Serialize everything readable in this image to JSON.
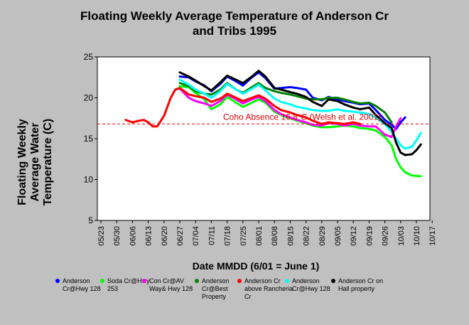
{
  "chart_data": {
    "type": "line",
    "title_lines": [
      "Floating Weekly Average Temperature of Anderson Cr",
      "and Tribs 1995"
    ],
    "ylabel_lines": [
      "Floating Weekly",
      "Average Water",
      "Temperature (C)"
    ],
    "xlabel": "Date MMDD (6/01 = June 1)",
    "x_ticks": [
      "05/23",
      "05/30",
      "06/06",
      "06/13",
      "06/20",
      "06/27",
      "07/04",
      "07/11",
      "07/18",
      "07/25",
      "08/01",
      "08/08",
      "08/15",
      "08/22",
      "08/29",
      "09/05",
      "09/12",
      "09/19",
      "09/26",
      "10/03",
      "10/10",
      "10/17"
    ],
    "y_ticks": [
      5,
      10,
      15,
      20,
      25
    ],
    "ylim": [
      5,
      25
    ],
    "reference_line": {
      "value": 16.8,
      "label": "Coho Absence 16.8°C (Welsh et al. 2001)",
      "color": "#dd0000"
    },
    "series": [
      {
        "name": "Anderson Cr@Hwy 128",
        "color": "#0000ff",
        "points": [
          [
            "06/27",
            22.6
          ],
          [
            "07/01",
            22.5
          ],
          [
            "07/04",
            22.0
          ],
          [
            "07/08",
            21.5
          ],
          [
            "07/11",
            20.8
          ],
          [
            "07/15",
            21.7
          ],
          [
            "07/18",
            22.6
          ],
          [
            "07/22",
            22.0
          ],
          [
            "07/25",
            21.5
          ],
          [
            "07/29",
            22.5
          ],
          [
            "08/01",
            23.1
          ],
          [
            "08/04",
            22.4
          ],
          [
            "08/08",
            21.1
          ],
          [
            "08/11",
            21.2
          ],
          [
            "08/15",
            21.3
          ],
          [
            "08/18",
            21.2
          ],
          [
            "08/22",
            21.0
          ],
          [
            "08/25",
            20.0
          ],
          [
            "08/29",
            19.7
          ],
          [
            "09/01",
            20.1
          ],
          [
            "09/05",
            19.8
          ],
          [
            "09/08",
            19.6
          ],
          [
            "09/12",
            19.4
          ],
          [
            "09/15",
            19.2
          ],
          [
            "09/19",
            19.3
          ],
          [
            "09/22",
            18.5
          ],
          [
            "09/26",
            17.3
          ],
          [
            "09/29",
            16.7
          ],
          [
            "10/01",
            16.2
          ],
          [
            "10/03",
            17.0
          ],
          [
            "10/05",
            17.6
          ]
        ]
      },
      {
        "name": "Soda Cr@Hwy 253",
        "color": "#00ff00",
        "points": [
          [
            "06/27",
            21.4
          ],
          [
            "07/01",
            21.3
          ],
          [
            "07/04",
            20.6
          ],
          [
            "07/08",
            19.8
          ],
          [
            "07/11",
            18.6
          ],
          [
            "07/15",
            19.2
          ],
          [
            "07/18",
            20.1
          ],
          [
            "07/22",
            19.4
          ],
          [
            "07/25",
            18.9
          ],
          [
            "07/29",
            19.4
          ],
          [
            "08/01",
            19.8
          ],
          [
            "08/04",
            19.4
          ],
          [
            "08/08",
            18.3
          ],
          [
            "08/11",
            17.9
          ],
          [
            "08/15",
            17.5
          ],
          [
            "08/18",
            17.2
          ],
          [
            "08/22",
            16.9
          ],
          [
            "08/25",
            16.6
          ],
          [
            "08/29",
            16.4
          ],
          [
            "09/01",
            16.4
          ],
          [
            "09/05",
            16.5
          ],
          [
            "09/08",
            16.6
          ],
          [
            "09/12",
            16.5
          ],
          [
            "09/15",
            16.3
          ],
          [
            "09/19",
            16.2
          ],
          [
            "09/22",
            16.0
          ],
          [
            "09/26",
            15.2
          ],
          [
            "09/29",
            14.2
          ],
          [
            "10/01",
            12.5
          ],
          [
            "10/03",
            11.5
          ],
          [
            "10/05",
            10.9
          ],
          [
            "10/08",
            10.5
          ],
          [
            "10/12",
            10.4
          ]
        ]
      },
      {
        "name": "Con Cr@AV Way& Hwy 128",
        "color": "#ff00ff",
        "points": [
          [
            "06/27",
            21.1
          ],
          [
            "07/01",
            20.0
          ],
          [
            "07/04",
            19.6
          ],
          [
            "07/08",
            19.3
          ],
          [
            "07/11",
            19.0
          ],
          [
            "07/15",
            19.6
          ],
          [
            "07/18",
            20.4
          ],
          [
            "07/22",
            19.8
          ],
          [
            "07/25",
            19.3
          ],
          [
            "07/29",
            19.8
          ],
          [
            "08/01",
            20.1
          ],
          [
            "08/04",
            19.6
          ],
          [
            "08/08",
            18.5
          ],
          [
            "08/11",
            18.0
          ],
          [
            "08/15",
            17.6
          ],
          [
            "08/18",
            17.3
          ],
          [
            "08/22",
            17.0
          ],
          [
            "08/25",
            16.7
          ],
          [
            "08/29",
            16.6
          ],
          [
            "09/01",
            16.9
          ],
          [
            "09/05",
            16.8
          ],
          [
            "09/08",
            16.6
          ],
          [
            "09/12",
            16.8
          ],
          [
            "09/15",
            16.6
          ],
          [
            "09/19",
            16.5
          ],
          [
            "09/22",
            16.5
          ],
          [
            "09/26",
            15.5
          ],
          [
            "09/29",
            15.2
          ],
          [
            "10/01",
            16.5
          ],
          [
            "10/03",
            17.5
          ]
        ]
      },
      {
        "name": "Anderson Cr@Best Property",
        "color": "#008000",
        "points": [
          [
            "06/27",
            21.8
          ],
          [
            "07/01",
            21.4
          ],
          [
            "07/04",
            20.8
          ],
          [
            "07/08",
            20.5
          ],
          [
            "07/11",
            20.4
          ],
          [
            "07/15",
            21.0
          ],
          [
            "07/18",
            21.8
          ],
          [
            "07/22",
            21.0
          ],
          [
            "07/25",
            20.6
          ],
          [
            "07/29",
            21.3
          ],
          [
            "08/01",
            21.8
          ],
          [
            "08/04",
            21.2
          ],
          [
            "08/08",
            20.8
          ],
          [
            "08/11",
            20.6
          ],
          [
            "08/15",
            20.4
          ],
          [
            "08/18",
            20.2
          ],
          [
            "08/22",
            19.9
          ],
          [
            "08/25",
            19.8
          ],
          [
            "08/29",
            19.8
          ],
          [
            "09/01",
            20.0
          ],
          [
            "09/05",
            20.0
          ],
          [
            "09/08",
            19.8
          ],
          [
            "09/12",
            19.5
          ],
          [
            "09/15",
            19.3
          ],
          [
            "09/19",
            19.4
          ],
          [
            "09/22",
            19.0
          ],
          [
            "09/26",
            18.2
          ],
          [
            "09/29",
            17.0
          ]
        ]
      },
      {
        "name": "Anderson Cr above Rancheria Cr",
        "color": "#ff0000",
        "points": [
          [
            "06/03",
            17.3
          ],
          [
            "06/06",
            17.0
          ],
          [
            "06/09",
            17.2
          ],
          [
            "06/11",
            17.3
          ],
          [
            "06/13",
            17.0
          ],
          [
            "06/15",
            16.5
          ],
          [
            "06/17",
            16.5
          ],
          [
            "06/20",
            17.8
          ],
          [
            "06/23",
            20.0
          ],
          [
            "06/25",
            21.0
          ],
          [
            "06/27",
            21.2
          ],
          [
            "07/01",
            20.4
          ],
          [
            "07/04",
            20.2
          ],
          [
            "07/08",
            20.0
          ],
          [
            "07/11",
            19.5
          ],
          [
            "07/15",
            19.9
          ],
          [
            "07/18",
            20.5
          ],
          [
            "07/22",
            20.0
          ],
          [
            "07/25",
            19.6
          ],
          [
            "07/29",
            20.0
          ],
          [
            "08/01",
            20.3
          ],
          [
            "08/04",
            19.9
          ],
          [
            "08/08",
            19.0
          ],
          [
            "08/11",
            18.5
          ],
          [
            "08/15",
            18.2
          ],
          [
            "08/18",
            17.9
          ],
          [
            "08/22",
            17.6
          ],
          [
            "08/25",
            17.2
          ],
          [
            "08/29",
            16.8
          ],
          [
            "09/01",
            17.0
          ],
          [
            "09/05",
            16.9
          ],
          [
            "09/08",
            16.8
          ],
          [
            "09/12",
            17.0
          ],
          [
            "09/15",
            16.8
          ]
        ]
      },
      {
        "name": "Anderson Cr@Hwy 128",
        "color": "#00ffff",
        "points": [
          [
            "06/27",
            22.2
          ],
          [
            "07/01",
            21.6
          ],
          [
            "07/04",
            21.0
          ],
          [
            "07/08",
            20.5
          ],
          [
            "07/11",
            20.0
          ],
          [
            "07/15",
            20.8
          ],
          [
            "07/18",
            21.7
          ],
          [
            "07/22",
            21.0
          ],
          [
            "07/25",
            20.5
          ],
          [
            "07/29",
            21.1
          ],
          [
            "08/01",
            21.6
          ],
          [
            "08/04",
            20.9
          ],
          [
            "08/08",
            19.9
          ],
          [
            "08/11",
            19.5
          ],
          [
            "08/15",
            19.2
          ],
          [
            "08/18",
            18.9
          ],
          [
            "08/22",
            18.7
          ],
          [
            "08/25",
            18.5
          ],
          [
            "08/29",
            18.4
          ],
          [
            "09/01",
            18.4
          ],
          [
            "09/05",
            18.6
          ],
          [
            "09/08",
            18.4
          ],
          [
            "09/12",
            18.3
          ],
          [
            "09/15",
            18.2
          ],
          [
            "09/19",
            18.0
          ],
          [
            "09/22",
            17.6
          ],
          [
            "09/26",
            16.8
          ],
          [
            "09/29",
            15.8
          ],
          [
            "10/01",
            15.0
          ],
          [
            "10/03",
            14.2
          ],
          [
            "10/05",
            13.8
          ],
          [
            "10/08",
            14.0
          ],
          [
            "10/10",
            14.8
          ],
          [
            "10/12",
            15.7
          ]
        ]
      },
      {
        "name": "Anderson Cr on Hall property",
        "color": "#000000",
        "points": [
          [
            "06/27",
            23.1
          ],
          [
            "07/01",
            22.6
          ],
          [
            "07/04",
            22.1
          ],
          [
            "07/08",
            21.4
          ],
          [
            "07/11",
            20.9
          ],
          [
            "07/15",
            21.9
          ],
          [
            "07/18",
            22.7
          ],
          [
            "07/22",
            22.2
          ],
          [
            "07/25",
            21.8
          ],
          [
            "07/29",
            22.6
          ],
          [
            "08/01",
            23.3
          ],
          [
            "08/04",
            22.6
          ],
          [
            "08/08",
            21.2
          ],
          [
            "08/11",
            21.0
          ],
          [
            "08/15",
            20.7
          ],
          [
            "08/18",
            20.5
          ],
          [
            "08/22",
            20.1
          ],
          [
            "08/25",
            19.5
          ],
          [
            "08/29",
            19.0
          ],
          [
            "09/01",
            19.8
          ],
          [
            "09/05",
            19.6
          ],
          [
            "09/08",
            19.2
          ],
          [
            "09/12",
            18.8
          ],
          [
            "09/15",
            18.6
          ],
          [
            "09/19",
            18.8
          ],
          [
            "09/22",
            17.9
          ],
          [
            "09/26",
            16.9
          ],
          [
            "09/29",
            16.3
          ],
          [
            "10/01",
            14.5
          ],
          [
            "10/03",
            13.3
          ],
          [
            "10/05",
            13.0
          ],
          [
            "10/08",
            13.1
          ],
          [
            "10/10",
            13.6
          ],
          [
            "10/12",
            14.3
          ]
        ]
      }
    ],
    "legend": [
      {
        "label": "Anderson Cr@Hwy 128",
        "color": "#0000ff"
      },
      {
        "label": "Soda Cr@Hwy 253",
        "color": "#00ff00"
      },
      {
        "label": "Con Cr@AV Way& Hwy 128",
        "color": "#ff00ff"
      },
      {
        "label": "Anderson Cr@Best Property",
        "color": "#008000"
      },
      {
        "label": "Anderson Cr above Rancheria Cr",
        "color": "#ff0000"
      },
      {
        "label": "Anderson Cr@Hwy 128",
        "color": "#00ffff"
      },
      {
        "label": "Anderson Cr on Hall property",
        "color": "#000000"
      }
    ],
    "grid": false,
    "legend_position": "bottom"
  }
}
